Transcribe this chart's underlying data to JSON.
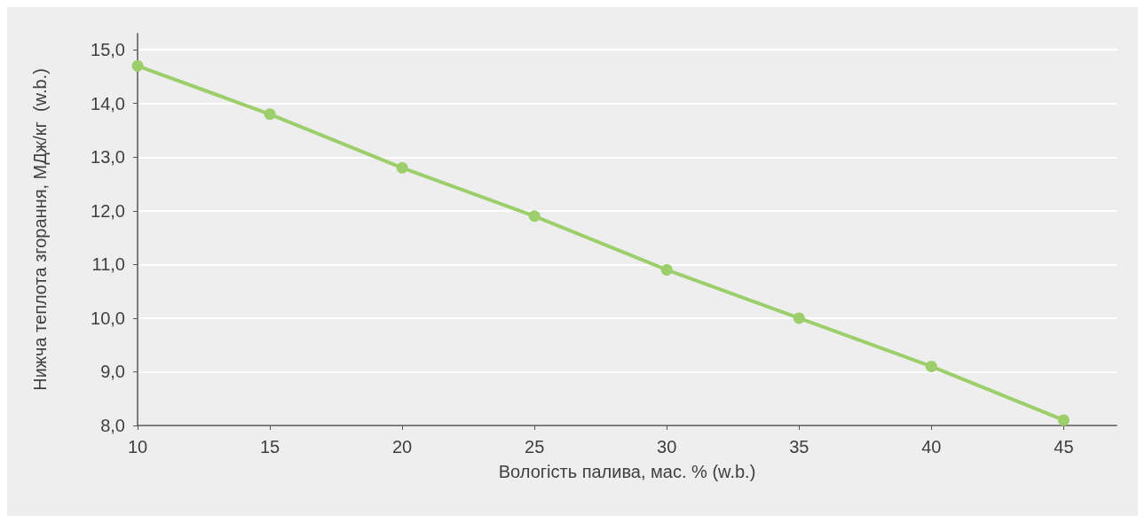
{
  "chart_data": {
    "type": "line",
    "xlabel": "Вологість палива, мас. % (w.b.)",
    "ylabel": "Нижча теплота згорання, МДж/кг  (w.b.)",
    "x": [
      10,
      15,
      20,
      25,
      30,
      35,
      40,
      45
    ],
    "series": [
      {
        "color": "#9ccf6c",
        "values": [
          14.7,
          13.8,
          12.8,
          11.9,
          10.9,
          10.0,
          9.1,
          8.1
        ]
      }
    ],
    "xlim": [
      10,
      47
    ],
    "xticks": [
      10,
      15,
      20,
      25,
      30,
      35,
      40,
      45
    ],
    "ylim": [
      8,
      15.3
    ],
    "yticks": [
      {
        "value": 8,
        "label": "8,0"
      },
      {
        "value": 9,
        "label": "9,0"
      },
      {
        "value": 10,
        "label": "10,0"
      },
      {
        "value": 11,
        "label": "11,0"
      },
      {
        "value": 12,
        "label": "12,0"
      },
      {
        "value": 13,
        "label": "13,0"
      },
      {
        "value": 14,
        "label": "14,0"
      },
      {
        "value": 15,
        "label": "15,0"
      }
    ],
    "grid": "y",
    "marker": "circle",
    "line_style": "solid"
  }
}
